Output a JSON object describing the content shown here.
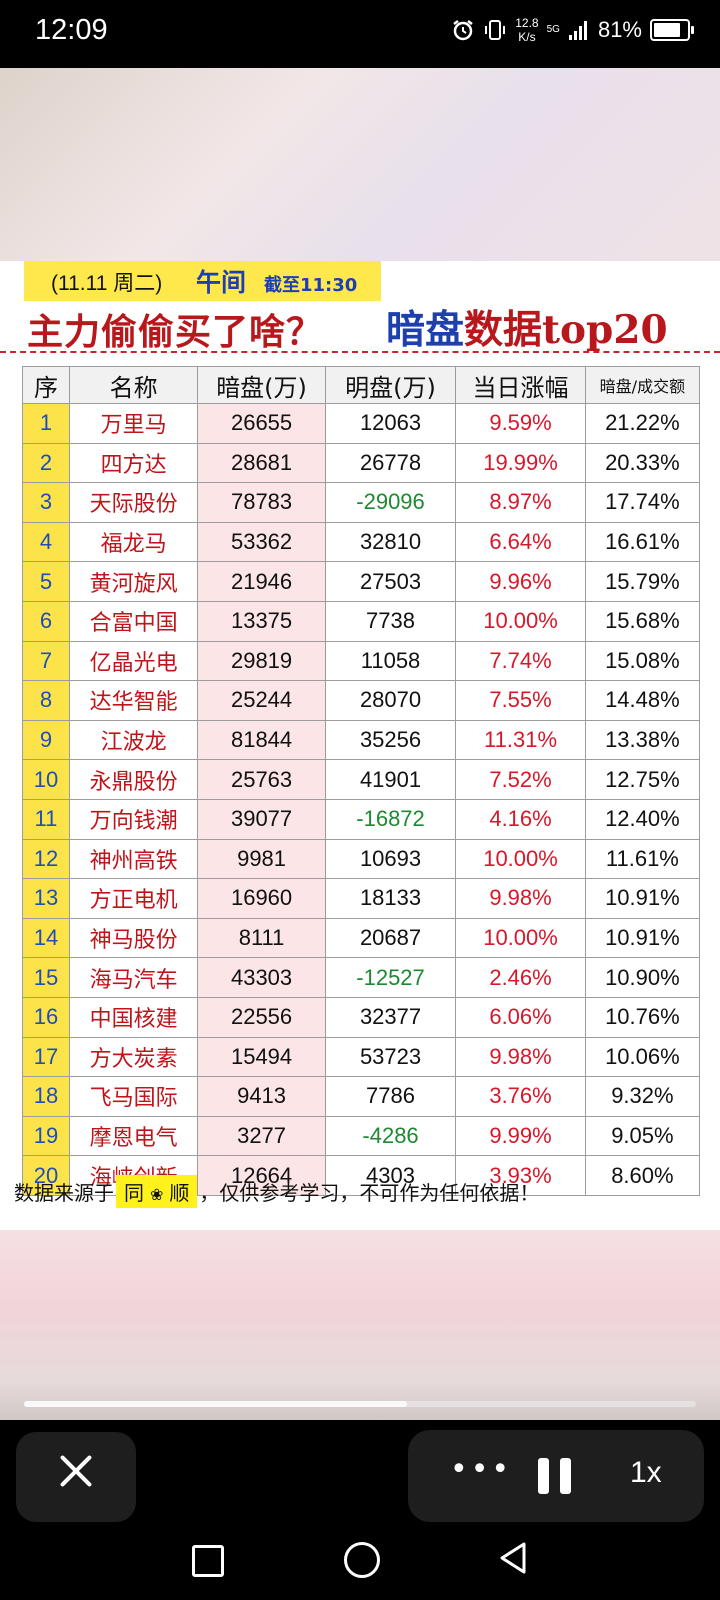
{
  "status_bar": {
    "time": "12:09",
    "net_speed_value": "12.8",
    "net_speed_unit": "K/s",
    "network": "5G",
    "battery": "81%",
    "icons": [
      "alarm-icon",
      "vibrate-icon",
      "signal-icon",
      "battery-icon"
    ]
  },
  "poster": {
    "date": "(11.11 周二)",
    "session": "午间",
    "cutoff": "截至11:30",
    "headline": "主力偷偷买了啥？",
    "headline2_blue": "暗盘",
    "headline2_red": "数据top20",
    "columns": [
      "序",
      "名称",
      "暗盘(万)",
      "明盘(万)",
      "当日涨幅",
      "暗盘/成交额"
    ],
    "rows": [
      [
        "1",
        "万里马",
        "26655",
        "12063",
        "9.59%",
        "21.22%"
      ],
      [
        "2",
        "四方达",
        "28681",
        "26778",
        "19.99%",
        "20.33%"
      ],
      [
        "3",
        "天际股份",
        "78783",
        "-29096",
        "8.97%",
        "17.74%"
      ],
      [
        "4",
        "福龙马",
        "53362",
        "32810",
        "6.64%",
        "16.61%"
      ],
      [
        "5",
        "黄河旋风",
        "21946",
        "27503",
        "9.96%",
        "15.79%"
      ],
      [
        "6",
        "合富中国",
        "13375",
        "7738",
        "10.00%",
        "15.68%"
      ],
      [
        "7",
        "亿晶光电",
        "29819",
        "11058",
        "7.74%",
        "15.08%"
      ],
      [
        "8",
        "达华智能",
        "25244",
        "28070",
        "7.55%",
        "14.48%"
      ],
      [
        "9",
        "江波龙",
        "81844",
        "35256",
        "11.31%",
        "13.38%"
      ],
      [
        "10",
        "永鼎股份",
        "25763",
        "41901",
        "7.52%",
        "12.75%"
      ],
      [
        "11",
        "万向钱潮",
        "39077",
        "-16872",
        "4.16%",
        "12.40%"
      ],
      [
        "12",
        "神州高铁",
        "9981",
        "10693",
        "10.00%",
        "11.61%"
      ],
      [
        "13",
        "方正电机",
        "16960",
        "18133",
        "9.98%",
        "10.91%"
      ],
      [
        "14",
        "神马股份",
        "8111",
        "20687",
        "10.00%",
        "10.91%"
      ],
      [
        "15",
        "海马汽车",
        "43303",
        "-12527",
        "2.46%",
        "10.90%"
      ],
      [
        "16",
        "中国核建",
        "22556",
        "32377",
        "6.06%",
        "10.76%"
      ],
      [
        "17",
        "方大炭素",
        "15494",
        "53723",
        "9.98%",
        "10.06%"
      ],
      [
        "18",
        "飞马国际",
        "9413",
        "7786",
        "3.76%",
        "9.32%"
      ],
      [
        "19",
        "摩恩电气",
        "3277",
        "-4286",
        "9.99%",
        "9.05%"
      ],
      [
        "20",
        "海峡创新",
        "12664",
        "4303",
        "3.93%",
        "8.60%"
      ]
    ],
    "footnote_prefix": "数据来源于",
    "source_a": "同",
    "source_b": "顺",
    "footnote_suffix": "，仅供参考学习，不可作为任何依据！"
  },
  "player": {
    "progress": 0.57,
    "speed_label": "1x",
    "more_label": "•••"
  },
  "colors": {
    "accent_red": "#b8171b",
    "accent_blue": "#1e3fae",
    "negative_green": "#1d8a32",
    "index_yellow": "#fde34a"
  }
}
